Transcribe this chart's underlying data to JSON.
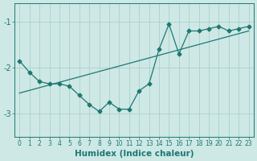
{
  "xlabel": "Humidex (Indice chaleur)",
  "bg_color": "#cde8e5",
  "line_color": "#1e7872",
  "grid_color": "#aed0cc",
  "x_data": [
    0,
    1,
    2,
    3,
    4,
    5,
    6,
    7,
    8,
    9,
    10,
    11,
    12,
    13,
    14,
    15,
    16,
    17,
    18,
    19,
    20,
    21,
    22,
    23
  ],
  "y_jagged": [
    -1.85,
    -2.1,
    -2.3,
    -2.35,
    -2.35,
    -2.4,
    -2.6,
    -2.8,
    -2.95,
    -2.75,
    -2.9,
    -2.9,
    -2.5,
    -2.35,
    -1.6,
    -1.05,
    -1.7,
    -1.2,
    -1.2,
    -1.15,
    -1.1,
    -1.2,
    -1.15,
    -1.1
  ],
  "trend_x": [
    0,
    23
  ],
  "trend_y": [
    -2.55,
    -1.2
  ],
  "xlim": [
    -0.5,
    23.5
  ],
  "ylim": [
    -3.5,
    -0.6
  ],
  "yticks": [
    -3,
    -2,
    -1
  ],
  "xtick_fontsize": 5.5,
  "ytick_fontsize": 7,
  "xlabel_fontsize": 7.5,
  "marker": "D",
  "marker_size": 2.5,
  "linewidth": 0.9
}
